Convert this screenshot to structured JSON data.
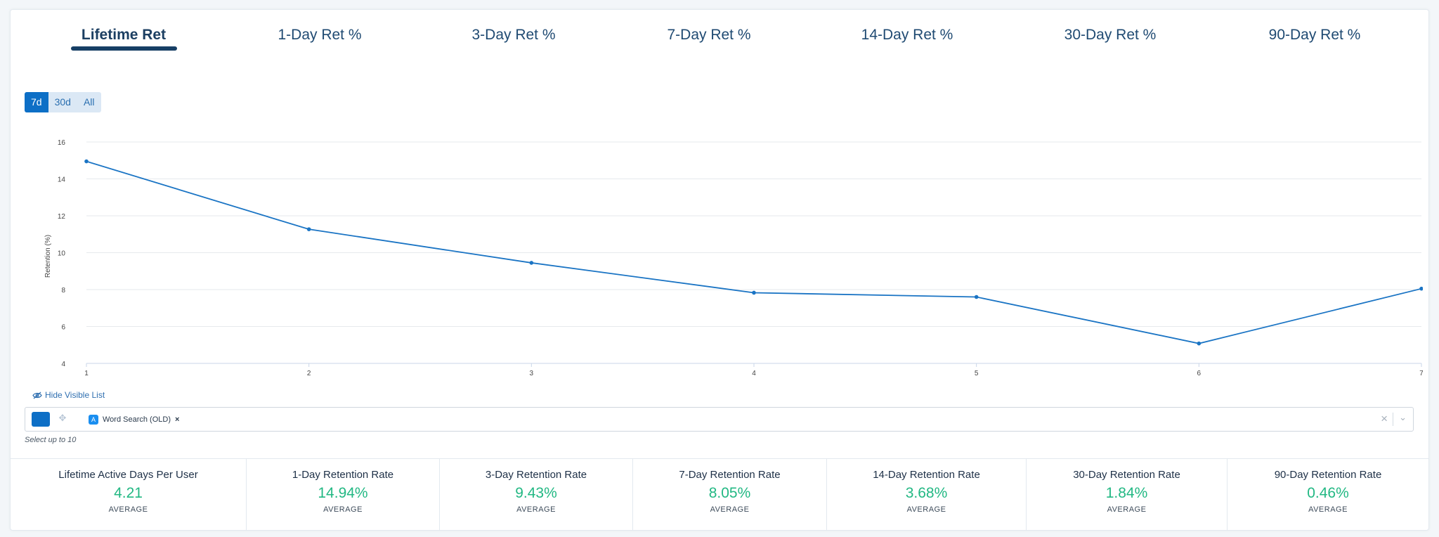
{
  "tabs": [
    {
      "label": "Lifetime Ret",
      "active": true
    },
    {
      "label": "1-Day Ret %",
      "active": false
    },
    {
      "label": "3-Day Ret %",
      "active": false
    },
    {
      "label": "7-Day Ret %",
      "active": false
    },
    {
      "label": "14-Day Ret %",
      "active": false
    },
    {
      "label": "30-Day Ret %",
      "active": false
    },
    {
      "label": "90-Day Ret %",
      "active": false
    }
  ],
  "range": {
    "options": [
      "7d",
      "30d",
      "All"
    ],
    "selected": "7d"
  },
  "chart_data": {
    "type": "line",
    "x": [
      1,
      2,
      3,
      4,
      5,
      6,
      7
    ],
    "series": [
      {
        "values": [
          14.95,
          11.27,
          9.45,
          7.83,
          7.6,
          5.08,
          8.05
        ],
        "color": "#1a74c4"
      }
    ],
    "xlabel": "",
    "ylabel": "Retention (%)",
    "xlim": [
      1,
      7
    ],
    "ylim": [
      4,
      16
    ],
    "yticks": [
      4,
      6,
      8,
      10,
      12,
      14,
      16
    ],
    "grid": true
  },
  "visible_list": {
    "hide_label": "Hide Visible List",
    "selected": [
      {
        "name": "Word Search (OLD)",
        "color": "#0d6fc6"
      }
    ],
    "hint": "Select up to 10"
  },
  "stats": [
    {
      "title": "Lifetime Active Days Per User",
      "value": "4.21",
      "sub": "AVERAGE"
    },
    {
      "title": "1-Day Retention Rate",
      "value": "14.94%",
      "sub": "AVERAGE"
    },
    {
      "title": "3-Day Retention Rate",
      "value": "9.43%",
      "sub": "AVERAGE"
    },
    {
      "title": "7-Day Retention Rate",
      "value": "8.05%",
      "sub": "AVERAGE"
    },
    {
      "title": "14-Day Retention Rate",
      "value": "3.68%",
      "sub": "AVERAGE"
    },
    {
      "title": "30-Day Retention Rate",
      "value": "1.84%",
      "sub": "AVERAGE"
    },
    {
      "title": "90-Day Retention Rate",
      "value": "0.46%",
      "sub": "AVERAGE"
    }
  ],
  "colors": {
    "accent": "#0d6fc6",
    "stat_value": "#22b883",
    "tab_underline": "#173f65"
  }
}
